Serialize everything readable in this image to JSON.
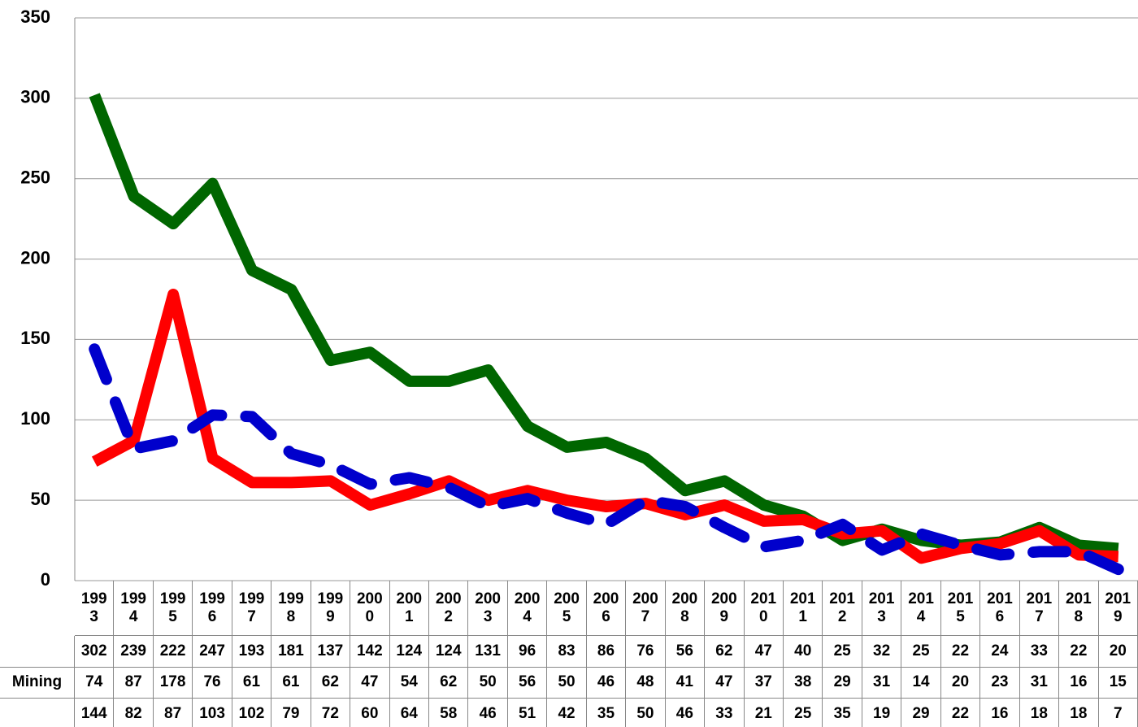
{
  "chart_data": {
    "type": "line",
    "categories": [
      "1993",
      "1994",
      "1995",
      "1996",
      "1997",
      "1998",
      "1999",
      "2000",
      "2001",
      "2002",
      "2003",
      "2004",
      "2005",
      "2006",
      "2007",
      "2008",
      "2009",
      "2010",
      "2011",
      "2012",
      "2013",
      "2014",
      "2015",
      "2016",
      "2017",
      "2018",
      "2019"
    ],
    "series": [
      {
        "color": "#006600",
        "dashed": false,
        "values": [
          302,
          239,
          222,
          247,
          193,
          181,
          137,
          142,
          124,
          124,
          131,
          96,
          83,
          86,
          76,
          56,
          62,
          47,
          40,
          25,
          32,
          25,
          22,
          24,
          33,
          22,
          20
        ]
      },
      {
        "name": "Mining",
        "color": "#ff0000",
        "dashed": false,
        "values": [
          74,
          87,
          178,
          76,
          61,
          61,
          62,
          47,
          54,
          62,
          50,
          56,
          50,
          46,
          48,
          41,
          47,
          37,
          38,
          29,
          31,
          14,
          20,
          23,
          31,
          16,
          15
        ]
      },
      {
        "color": "#0000cc",
        "dashed": true,
        "values": [
          144,
          82,
          87,
          103,
          102,
          79,
          72,
          60,
          64,
          58,
          46,
          51,
          42,
          35,
          50,
          46,
          33,
          21,
          25,
          35,
          19,
          29,
          22,
          16,
          18,
          18,
          7
        ]
      }
    ],
    "ylim": [
      0,
      350
    ],
    "yticks": [
      0,
      50,
      100,
      150,
      200,
      250,
      300,
      350
    ],
    "grid": true
  }
}
